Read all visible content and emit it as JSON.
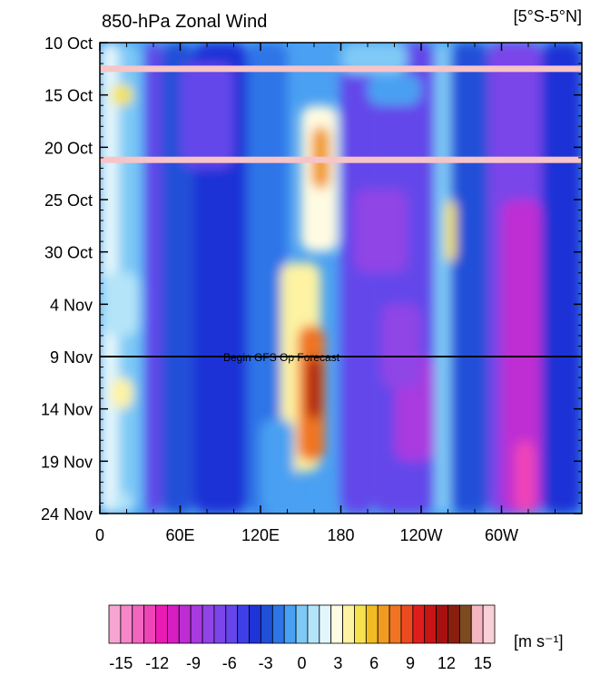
{
  "chart_data": {
    "type": "heatmap",
    "title": "850-hPa Zonal Wind",
    "region_label": "[5°S-5°N]",
    "x_tick_labels": [
      "0",
      "60E",
      "120E",
      "180",
      "120W",
      "60W"
    ],
    "x_ticks_deg": [
      0,
      60,
      120,
      180,
      240,
      300
    ],
    "xlim_deg": [
      0,
      360
    ],
    "y_tick_labels": [
      "10 Oct",
      "15 Oct",
      "20 Oct",
      "25 Oct",
      "30 Oct",
      "4 Nov",
      "9 Nov",
      "14 Nov",
      "19 Nov",
      "24 Nov"
    ],
    "y_ticks_day": [
      0,
      5,
      10,
      15,
      20,
      25,
      30,
      35,
      40,
      45
    ],
    "ylim_day": [
      0,
      45
    ],
    "forecast_line_day": 30,
    "forecast_label": "Begin GFS Op Forecast",
    "missing_data_days": [
      2.5,
      11.2
    ],
    "colorbar": {
      "unit_label": "[m s⁻¹]",
      "levels": [
        -16,
        -15,
        -14,
        -13,
        -12,
        -11,
        -10,
        -9,
        -8,
        -7,
        -6,
        -5,
        -4,
        -3,
        -2,
        -1,
        0,
        1,
        2,
        3,
        4,
        5,
        6,
        7,
        8,
        9,
        10,
        11,
        12,
        13,
        14,
        15,
        16
      ],
      "tick_labels": [
        "-15",
        "-12",
        "-9",
        "-6",
        "-3",
        "0",
        "3",
        "6",
        "9",
        "12",
        "15"
      ],
      "tick_values": [
        -15,
        -12,
        -9,
        -6,
        -3,
        0,
        3,
        6,
        9,
        12,
        15
      ],
      "colors": [
        "#f7a6d3",
        "#f586c9",
        "#f266c0",
        "#ef44b8",
        "#ea1bb4",
        "#d61ec3",
        "#be2dd3",
        "#a93ae0",
        "#9044e6",
        "#7a45e9",
        "#6446ea",
        "#3f3fe8",
        "#1f33d6",
        "#2050d8",
        "#2e75e8",
        "#4aa0f2",
        "#7ec9f6",
        "#b4e4f8",
        "#e3f6fb",
        "#fffbe2",
        "#fdf3a2",
        "#f6e24e",
        "#f0bc22",
        "#f19a22",
        "#f07422",
        "#ee4a20",
        "#e01d1d",
        "#c71515",
        "#a81010",
        "#8a1f0e",
        "#7d4a20",
        "#f5b6c2",
        "#f9d0d6"
      ]
    }
  }
}
